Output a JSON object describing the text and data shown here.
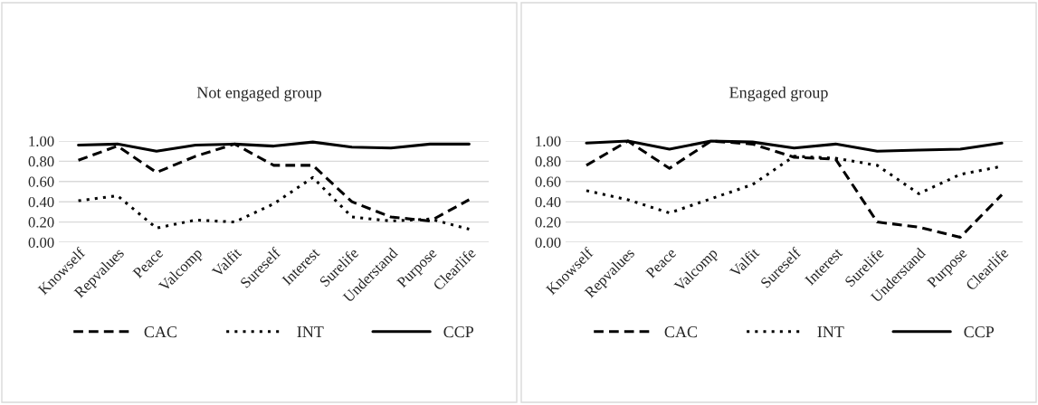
{
  "chart_data": [
    {
      "type": "line",
      "title": "Not engaged group",
      "categories": [
        "Knowself",
        "Repvalues",
        "Peace",
        "Valcomp",
        "Valfit",
        "Sureself",
        "Interest",
        "Surelife",
        "Understand",
        "Purpose",
        "Clearlife"
      ],
      "series": [
        {
          "name": "CAC",
          "color": "#000000",
          "line_style": "dashed",
          "values": [
            0.81,
            0.95,
            0.69,
            0.85,
            0.97,
            0.76,
            0.76,
            0.4,
            0.25,
            0.21,
            0.42
          ]
        },
        {
          "name": "INT",
          "color": "#000000",
          "line_style": "dotted",
          "values": [
            0.41,
            0.46,
            0.14,
            0.22,
            0.2,
            0.38,
            0.64,
            0.25,
            0.21,
            0.23,
            0.13
          ]
        },
        {
          "name": "CCP",
          "color": "#000000",
          "line_style": "solid",
          "values": [
            0.96,
            0.97,
            0.9,
            0.96,
            0.97,
            0.95,
            0.99,
            0.94,
            0.93,
            0.97,
            0.97
          ]
        }
      ],
      "ylim": [
        0,
        1.0
      ],
      "yticks": [
        {
          "value": 0,
          "label": "0.00"
        },
        {
          "value": 0.2,
          "label": "0.20"
        },
        {
          "value": 0.4,
          "label": "0.40"
        },
        {
          "value": 0.6,
          "label": "0.60"
        },
        {
          "value": 0.8,
          "label": "0.80"
        },
        {
          "value": 1.0,
          "label": "1.00"
        }
      ],
      "grid": "y",
      "legend": "bottom"
    },
    {
      "type": "line",
      "title": "Engaged group",
      "categories": [
        "Knowself",
        "Repvalues",
        "Peace",
        "Valcomp",
        "Valfit",
        "Sureself",
        "Interest",
        "Surelife",
        "Understand",
        "Purpose",
        "Clearlife"
      ],
      "series": [
        {
          "name": "CAC",
          "color": "#000000",
          "line_style": "dashed",
          "values": [
            0.76,
            1.0,
            0.73,
            1.0,
            0.97,
            0.84,
            0.82,
            0.2,
            0.15,
            0.05,
            0.47
          ]
        },
        {
          "name": "INT",
          "color": "#000000",
          "line_style": "dotted",
          "values": [
            0.51,
            0.42,
            0.29,
            0.43,
            0.57,
            0.85,
            0.83,
            0.76,
            0.48,
            0.67,
            0.75
          ]
        },
        {
          "name": "CCP",
          "color": "#000000",
          "line_style": "solid",
          "values": [
            0.98,
            1.0,
            0.92,
            1.0,
            0.99,
            0.93,
            0.97,
            0.9,
            0.91,
            0.92,
            0.98
          ]
        }
      ],
      "ylim": [
        0,
        1.0
      ],
      "yticks": [
        {
          "value": 0,
          "label": "0.00"
        },
        {
          "value": 0.2,
          "label": "0.20"
        },
        {
          "value": 0.4,
          "label": "0.40"
        },
        {
          "value": 0.6,
          "label": "0.60"
        },
        {
          "value": 0.8,
          "label": "0.80"
        },
        {
          "value": 1.0,
          "label": "1.00"
        }
      ],
      "grid": "y",
      "legend": "bottom"
    }
  ]
}
